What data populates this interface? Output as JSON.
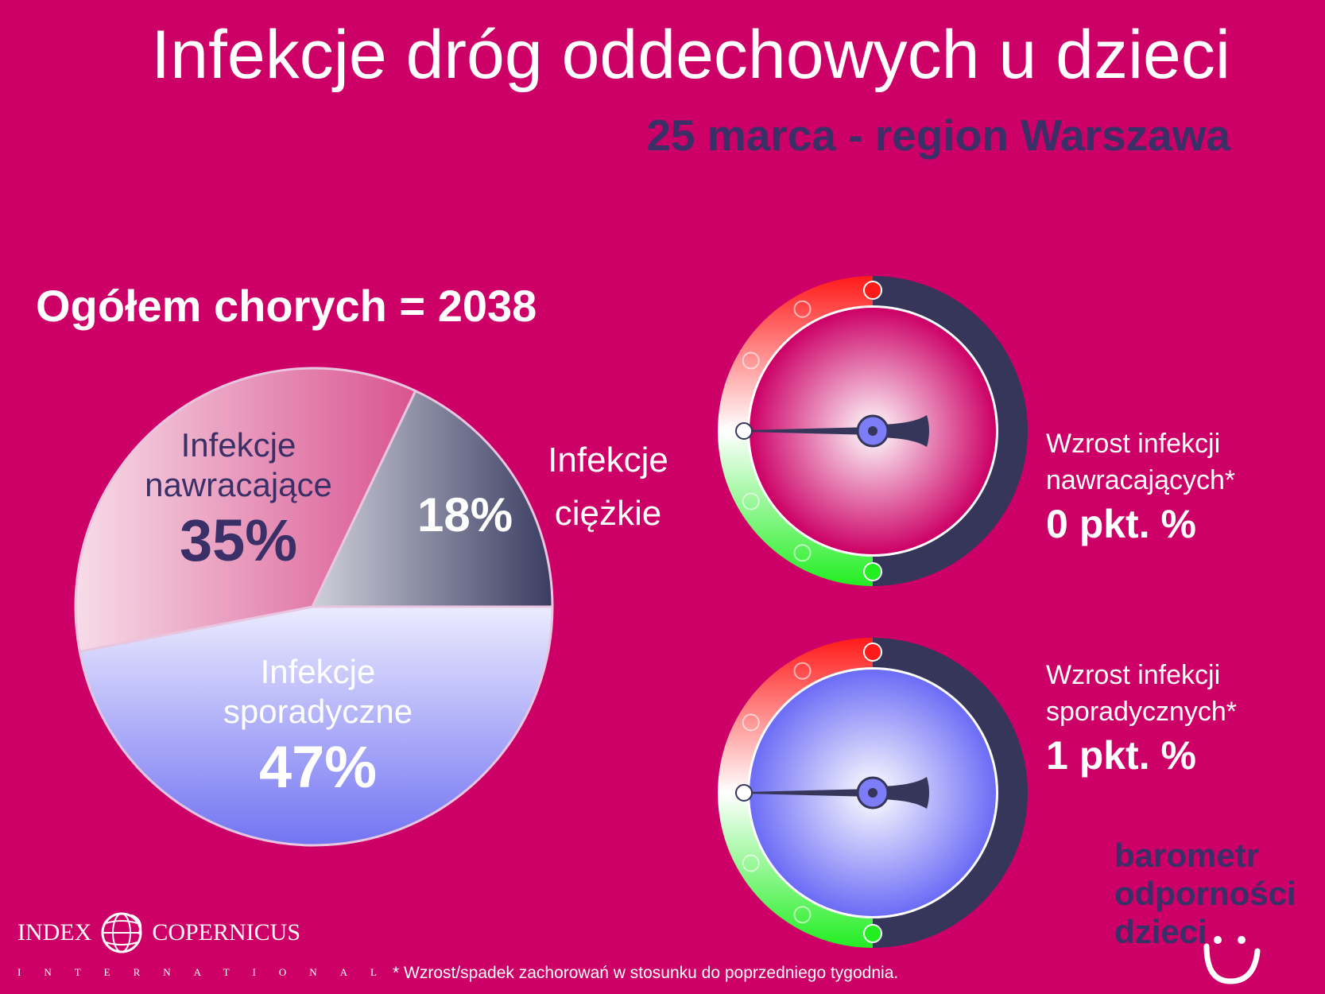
{
  "title": "Infekcje dróg oddechowych u dzieci",
  "subtitle": "25 marca - region Warszawa",
  "total_label": "Ogółem chorych = 2038",
  "chart_data": [
    {
      "type": "pie",
      "slices": [
        {
          "label_line1": "Infekcje",
          "label_line2": "nawracające",
          "value": 35,
          "value_label": "35%",
          "color_light": "#f7dce8",
          "color_dark": "#d9548f"
        },
        {
          "label_line1": "Infekcje",
          "label_line2": "ciężkie",
          "value": 18,
          "value_label": "18%",
          "color_light": "#cfd0da",
          "color_dark": "#3a3c62"
        },
        {
          "label_line1": "Infekcje",
          "label_line2": "sporadyczne",
          "value": 47,
          "value_label": "47%",
          "color_light": "#ecebff",
          "color_dark": "#7274f2"
        }
      ],
      "start": "nawracające slice begins at the 35% boundary, going clockwise from top-right"
    },
    {
      "type": "gauge",
      "name": "nawracające",
      "line1": "Wzrost infekcji",
      "line2": "nawracających*",
      "value_label": "0 pkt. %",
      "value": 0,
      "center_color": "#cc0066"
    },
    {
      "type": "gauge",
      "name": "sporadyczne",
      "line1": "Wzrost infekcji",
      "line2": "sporadycznych*",
      "value_label": "1 pkt. %",
      "value": 1,
      "center_color": "#6c6cf6"
    }
  ],
  "footnote": "* Wzrost/spadek zachorowań w stosunku do poprzedniego tygodnia.",
  "logo": {
    "left": "INDEX",
    "right": "COPERNICUS",
    "sub": "INTERNATIONAL"
  },
  "brand": {
    "line1": "barometr",
    "line2": "odporności",
    "line3": "dzieci"
  },
  "colors": {
    "background": "#cc0066",
    "dark": "#3a2f66",
    "gauge_rim_dark": "#35365a",
    "gauge_red": "#ff1a1a",
    "gauge_green": "#22ee22"
  }
}
